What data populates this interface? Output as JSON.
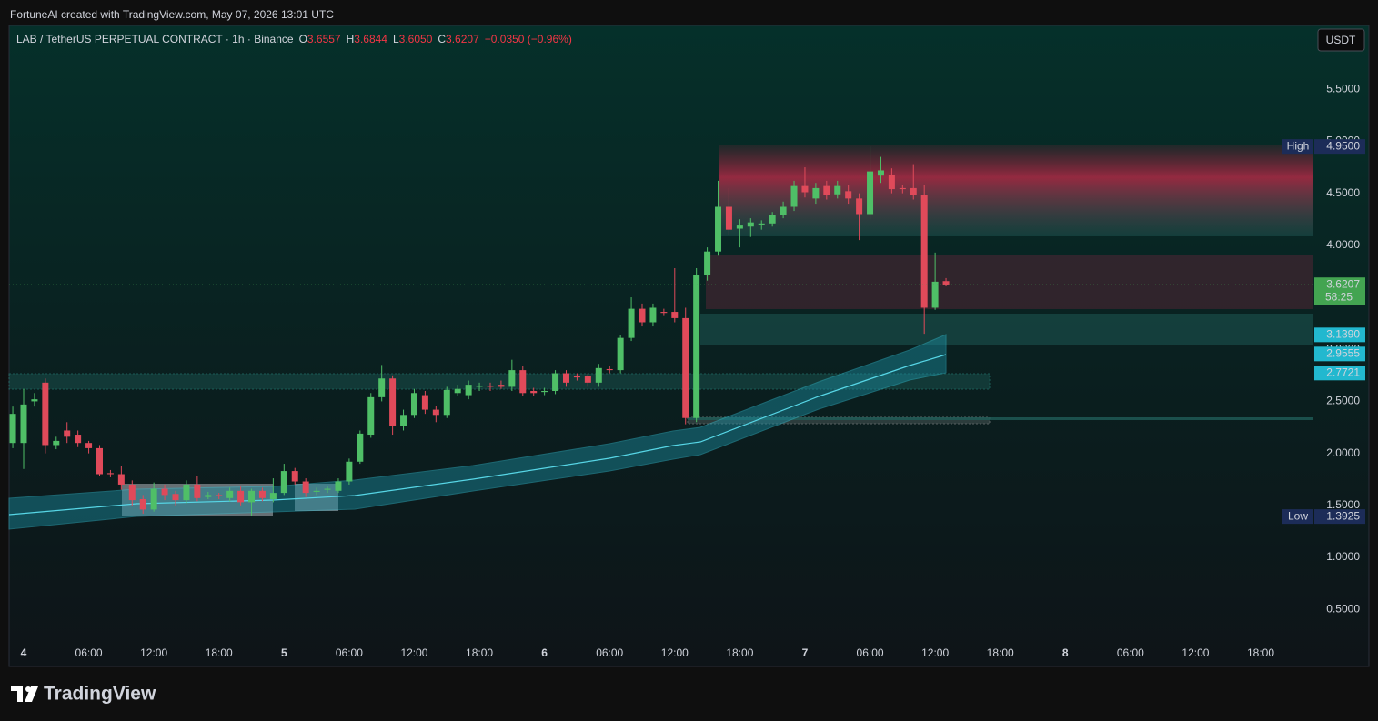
{
  "header": {
    "attribution": "FortuneAI created with TradingView.com, May 07, 2026 13:01 UTC"
  },
  "legend": {
    "symbol": "LAB / TetherUS PERPETUAL CONTRACT · 1h · Binance",
    "o": "O",
    "open": "3.6557",
    "h": "H",
    "high": "3.6844",
    "l": "L",
    "low": "3.6050",
    "c": "C",
    "close": "3.6207",
    "change": "−0.0350 (−0.96%)"
  },
  "currency": "USDT",
  "brand": "TradingView",
  "chart_data": {
    "type": "candlestick",
    "up_color": "#4fbf67",
    "down_color": "#e04a5a",
    "grid": false,
    "xlim": [
      -1.34,
      118.86
    ],
    "ylim": [
      0.196,
      6.114
    ],
    "xticks": [
      {
        "value": 0,
        "label": "4"
      },
      {
        "value": 6,
        "label": "06:00"
      },
      {
        "value": 12,
        "label": "12:00"
      },
      {
        "value": 18,
        "label": "18:00"
      },
      {
        "value": 24,
        "label": "5"
      },
      {
        "value": 30,
        "label": "06:00"
      },
      {
        "value": 36,
        "label": "12:00"
      },
      {
        "value": 42,
        "label": "18:00"
      },
      {
        "value": 48,
        "label": "6"
      },
      {
        "value": 54,
        "label": "06:00"
      },
      {
        "value": 60,
        "label": "12:00"
      },
      {
        "value": 66,
        "label": "18:00"
      },
      {
        "value": 72,
        "label": "7"
      },
      {
        "value": 78,
        "label": "06:00"
      },
      {
        "value": 84,
        "label": "12:00"
      },
      {
        "value": 90,
        "label": "18:00"
      },
      {
        "value": 96,
        "label": "8"
      },
      {
        "value": 102,
        "label": "06:00"
      },
      {
        "value": 108,
        "label": "12:00"
      },
      {
        "value": 114,
        "label": "18:00"
      }
    ],
    "yticks": [
      {
        "value": 0.5,
        "label": "0.5000"
      },
      {
        "value": 1,
        "label": "1.0000"
      },
      {
        "value": 1.5,
        "label": "1.5000"
      },
      {
        "value": 2,
        "label": "2.0000"
      },
      {
        "value": 2.5,
        "label": "2.5000"
      },
      {
        "value": 3,
        "label": "3.0000"
      },
      {
        "value": 3.5,
        "label": "3.5000"
      },
      {
        "value": 4,
        "label": "4.0000"
      },
      {
        "value": 4.5,
        "label": "4.5000"
      },
      {
        "value": 5,
        "label": "5.0000"
      },
      {
        "value": 5.5,
        "label": "5.5000"
      }
    ],
    "x": [
      -1,
      0,
      1,
      2,
      3,
      4,
      5,
      6,
      7,
      8,
      9,
      10,
      11,
      12,
      13,
      14,
      15,
      16,
      17,
      18,
      19,
      20,
      21,
      22,
      23,
      24,
      25,
      26,
      27,
      28,
      29,
      30,
      31,
      32,
      33,
      34,
      35,
      36,
      37,
      38,
      39,
      40,
      41,
      42,
      43,
      44,
      45,
      46,
      47,
      48,
      49,
      50,
      51,
      52,
      53,
      54,
      55,
      56,
      57,
      58,
      59,
      60,
      61,
      62,
      63,
      64,
      65,
      66,
      67,
      68,
      69,
      70,
      71,
      72,
      73,
      74,
      75,
      76,
      77,
      78,
      79,
      80,
      81,
      82,
      83,
      84,
      85
    ],
    "open": [
      2.1,
      2.1,
      2.5,
      2.68,
      2.08,
      2.22,
      2.18,
      2.1,
      2.05,
      1.81,
      1.8,
      1.7,
      1.56,
      1.46,
      1.66,
      1.61,
      1.55,
      1.7,
      1.58,
      1.6,
      1.57,
      1.64,
      1.53,
      1.64,
      1.56,
      1.62,
      1.83,
      1.73,
      1.63,
      1.65,
      1.64,
      1.73,
      1.92,
      2.18,
      2.54,
      2.72,
      2.26,
      2.37,
      2.56,
      2.42,
      2.37,
      2.58,
      2.56,
      2.64,
      2.65,
      2.66,
      2.64,
      2.8,
      2.6,
      2.59,
      2.6,
      2.77,
      2.74,
      2.74,
      2.68,
      2.81,
      2.8,
      3.11,
      3.39,
      3.26,
      3.36,
      3.36,
      3.3,
      2.34,
      3.71,
      3.94,
      4.37,
      4.16,
      4.18,
      4.2,
      4.21,
      4.29,
      4.37,
      4.57,
      4.45,
      4.57,
      4.49,
      4.52,
      4.45,
      4.3,
      4.67,
      4.68,
      4.55,
      4.55,
      4.48,
      3.4,
      3.6557
    ],
    "high": [
      2.45,
      2.62,
      2.58,
      2.72,
      2.16,
      2.3,
      2.22,
      2.12,
      2.08,
      1.84,
      1.88,
      1.74,
      1.6,
      1.72,
      1.7,
      1.64,
      1.74,
      1.78,
      1.63,
      1.62,
      1.67,
      1.68,
      1.66,
      1.67,
      1.76,
      1.9,
      1.86,
      1.76,
      1.67,
      1.68,
      1.76,
      1.95,
      2.22,
      2.58,
      2.85,
      2.75,
      2.42,
      2.62,
      2.6,
      2.46,
      2.64,
      2.66,
      2.7,
      2.68,
      2.68,
      2.7,
      2.9,
      2.84,
      2.63,
      2.63,
      2.8,
      2.8,
      2.77,
      2.77,
      2.86,
      2.84,
      3.14,
      3.5,
      3.44,
      3.44,
      3.39,
      3.78,
      3.4,
      3.78,
      3.98,
      4.62,
      4.55,
      4.25,
      4.26,
      4.24,
      4.32,
      4.42,
      4.62,
      4.75,
      4.6,
      4.62,
      4.62,
      4.58,
      4.5,
      4.95,
      4.85,
      4.74,
      4.58,
      4.78,
      4.58,
      3.93,
      3.6844
    ],
    "low": [
      2.05,
      1.85,
      2.45,
      2.0,
      2.04,
      2.1,
      2.06,
      2.0,
      1.78,
      1.77,
      1.65,
      1.5,
      1.42,
      1.44,
      1.55,
      1.5,
      1.52,
      1.54,
      1.56,
      1.56,
      1.54,
      1.5,
      1.4,
      1.54,
      1.53,
      1.6,
      1.7,
      1.58,
      1.6,
      1.62,
      1.62,
      1.7,
      1.9,
      2.15,
      2.5,
      2.18,
      2.22,
      2.34,
      2.38,
      2.3,
      2.34,
      2.55,
      2.52,
      2.6,
      2.6,
      2.62,
      2.6,
      2.55,
      2.55,
      2.56,
      2.57,
      2.64,
      2.7,
      2.64,
      2.64,
      2.77,
      2.77,
      3.08,
      3.22,
      3.22,
      3.32,
      3.26,
      2.28,
      2.3,
      3.66,
      3.9,
      4.1,
      3.98,
      4.08,
      4.15,
      4.18,
      4.26,
      4.33,
      4.46,
      4.4,
      4.44,
      4.45,
      4.4,
      4.05,
      4.25,
      4.6,
      4.5,
      4.5,
      4.44,
      3.15,
      3.38,
      3.605
    ],
    "close": [
      2.38,
      2.47,
      2.52,
      2.08,
      2.12,
      2.16,
      2.1,
      2.05,
      1.8,
      1.8,
      1.7,
      1.55,
      1.46,
      1.66,
      1.6,
      1.55,
      1.7,
      1.57,
      1.6,
      1.59,
      1.64,
      1.53,
      1.64,
      1.57,
      1.62,
      1.83,
      1.73,
      1.62,
      1.64,
      1.66,
      1.73,
      1.92,
      2.19,
      2.54,
      2.72,
      2.26,
      2.37,
      2.58,
      2.42,
      2.37,
      2.61,
      2.62,
      2.66,
      2.65,
      2.64,
      2.64,
      2.8,
      2.58,
      2.58,
      2.6,
      2.77,
      2.68,
      2.73,
      2.68,
      2.82,
      2.8,
      3.11,
      3.39,
      3.26,
      3.4,
      3.35,
      3.3,
      2.34,
      3.71,
      3.94,
      4.37,
      4.15,
      4.19,
      4.22,
      4.21,
      4.29,
      4.37,
      4.57,
      4.51,
      4.55,
      4.48,
      4.57,
      4.45,
      4.3,
      4.71,
      4.72,
      4.54,
      4.54,
      4.48,
      3.4,
      3.65,
      3.6207
    ],
    "price_labels": [
      {
        "tag": "High",
        "value": 4.95,
        "label": "4.9500",
        "color": "#1c2c58"
      },
      {
        "value": 3.6207,
        "label": "3.6207",
        "sub": "58:25",
        "color": "#43a451"
      },
      {
        "value": 3.139,
        "label": "3.1390",
        "color": "#22b8cf"
      },
      {
        "value": 2.9555,
        "label": "2.9555",
        "color": "#22b8cf"
      },
      {
        "value": 2.7721,
        "label": "2.7721",
        "color": "#22b8cf"
      },
      {
        "tag": "Low",
        "value": 1.3925,
        "label": "1.3925",
        "color": "#1c2c58"
      }
    ]
  }
}
